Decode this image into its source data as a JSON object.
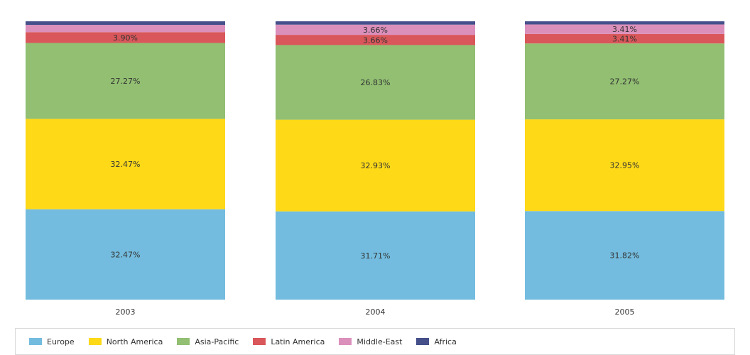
{
  "chart_data": {
    "type": "bar",
    "stacked": true,
    "normalized": true,
    "categories": [
      "2003",
      "2004",
      "2005"
    ],
    "series": [
      {
        "name": "Europe",
        "color": "#73bcdf",
        "values": [
          32.47,
          31.71,
          31.82
        ],
        "labels": [
          "32.47%",
          "31.71%",
          "31.82%"
        ]
      },
      {
        "name": "North America",
        "color": "#fdd918",
        "values": [
          32.47,
          32.93,
          32.95
        ],
        "labels": [
          "32.47%",
          "32.93%",
          "32.95%"
        ]
      },
      {
        "name": "Asia-Pacific",
        "color": "#92bf72",
        "values": [
          27.27,
          26.83,
          27.27
        ],
        "labels": [
          "27.27%",
          "26.83%",
          "27.27%"
        ]
      },
      {
        "name": "Latin America",
        "color": "#d9575a",
        "values": [
          3.9,
          3.66,
          3.41
        ],
        "labels": [
          "3.90%",
          "3.66%",
          "3.41%"
        ]
      },
      {
        "name": "Middle-East",
        "color": "#db8fbb",
        "values": [
          2.6,
          3.66,
          3.41
        ],
        "labels": [
          "",
          "3.66%",
          "3.41%"
        ]
      },
      {
        "name": "Africa",
        "color": "#45508a",
        "values": [
          1.29,
          1.21,
          1.14
        ],
        "labels": [
          "",
          "",
          ""
        ]
      }
    ],
    "ylim": [
      0,
      100
    ],
    "grid": false,
    "legend_position": "bottom"
  }
}
